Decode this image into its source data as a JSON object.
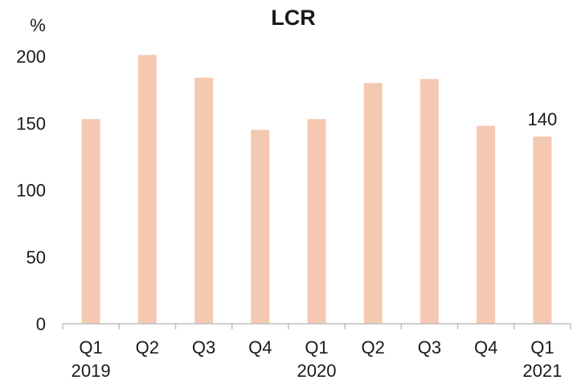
{
  "chart_data": {
    "type": "bar",
    "title": "LCR",
    "ylabel": "%",
    "xlabel": "",
    "ylim": [
      0,
      200
    ],
    "yticks": [
      0,
      50,
      100,
      150,
      200
    ],
    "categories": [
      "Q1",
      "Q2",
      "Q3",
      "Q4",
      "Q1",
      "Q2",
      "Q3",
      "Q4",
      "Q1"
    ],
    "category_groups": [
      {
        "label": "2019",
        "start": 0
      },
      {
        "label": "2020",
        "start": 4
      },
      {
        "label": "2021",
        "start": 8
      }
    ],
    "values": [
      153,
      201,
      184,
      145,
      153,
      180,
      183,
      148,
      140
    ],
    "data_labels": [
      {
        "index": 8,
        "text": "140"
      }
    ],
    "bar_color": "#f5c9b1",
    "grid": false,
    "legend": "none"
  }
}
